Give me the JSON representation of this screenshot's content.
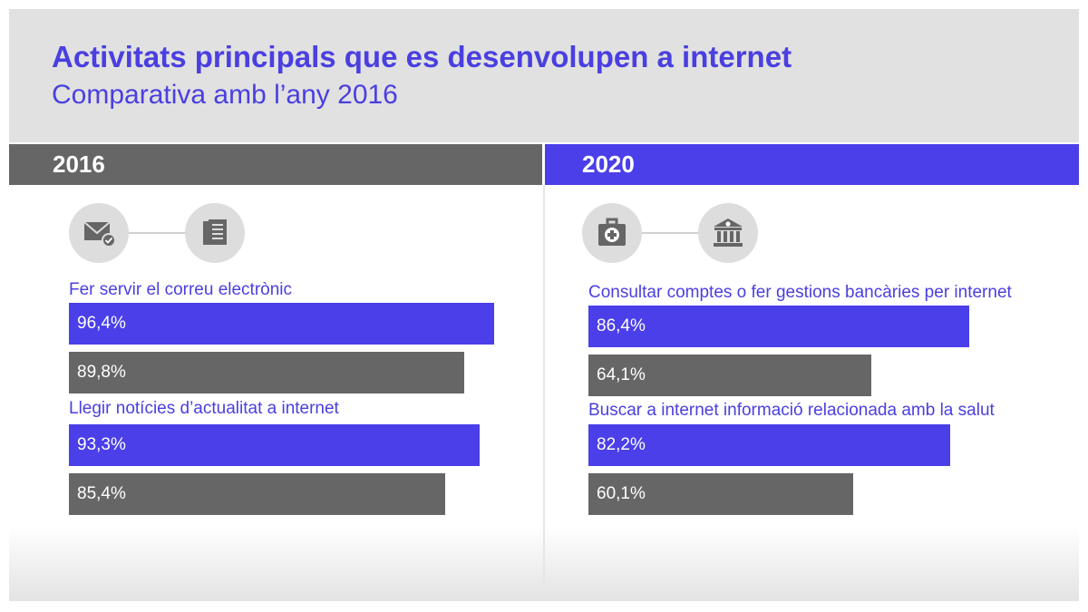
{
  "title": "Activitats principals que es desenvolupen a internet",
  "subtitle": "Comparativa amb l’any 2016",
  "panels": [
    {
      "year": "2016"
    },
    {
      "year": "2020"
    }
  ],
  "icons": [
    "email-check-icon",
    "newspaper-icon",
    "medical-kit-icon",
    "bank-euro-icon"
  ],
  "colors": {
    "year_2020": "#4a3fe8",
    "year_2016": "#666666",
    "header_bg": "#e1e1e1"
  },
  "chart_data": [
    {
      "type": "bar",
      "orientation": "horizontal",
      "panel": "2016",
      "categories": [
        "Fer servir el correu electrònic",
        "Llegir notícies d’actualitat a internet"
      ],
      "series": [
        {
          "values": [
            96.4,
            93.3
          ],
          "labels": [
            "96,4%",
            "93,3%"
          ],
          "color": "#4a3fe8"
        },
        {
          "values": [
            89.8,
            85.4
          ],
          "labels": [
            "89,8%",
            "85,4%"
          ],
          "color": "#666666"
        }
      ]
    },
    {
      "type": "bar",
      "orientation": "horizontal",
      "panel": "2020",
      "categories": [
        "Consultar comptes o fer gestions bancàries per internet",
        "Buscar a internet informació relacionada amb la salut"
      ],
      "series": [
        {
          "values": [
            86.4,
            82.2
          ],
          "labels": [
            "86,4%",
            "82,2%"
          ],
          "color": "#4a3fe8"
        },
        {
          "values": [
            64.1,
            60.1
          ],
          "labels": [
            "64,1%",
            "60,1%"
          ],
          "color": "#666666"
        }
      ]
    }
  ]
}
